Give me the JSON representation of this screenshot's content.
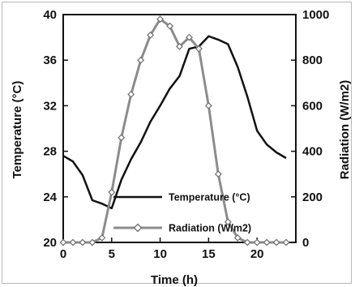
{
  "chart_data": {
    "type": "line",
    "xlabel": "Time (h)",
    "ylabel_left": "Temperature (°C)",
    "ylabel_right": "Radiation (W/m2)",
    "xlim": [
      0,
      24
    ],
    "ylim_left": [
      20,
      40
    ],
    "ylim_right": [
      0,
      1000
    ],
    "x_ticks": [
      0,
      5,
      10,
      15,
      20
    ],
    "y_ticks_left": [
      20,
      24,
      28,
      32,
      36,
      40
    ],
    "y_ticks_right": [
      0,
      200,
      400,
      600,
      800,
      1000
    ],
    "grid": false,
    "legend_position": "bottom-center",
    "series": [
      {
        "name": "Temperature (°C)",
        "axis": "left",
        "color": "#111111",
        "marker": "none",
        "x": [
          0,
          1,
          2,
          3,
          4,
          5,
          6,
          7,
          8,
          9,
          10,
          11,
          12,
          13,
          14,
          15,
          16,
          17,
          18,
          19,
          20,
          21,
          22,
          23
        ],
        "y": [
          27.6,
          27.1,
          25.9,
          23.7,
          23.4,
          23.0,
          25.5,
          27.3,
          28.8,
          30.6,
          32.0,
          33.5,
          34.6,
          37.0,
          37.2,
          38.1,
          37.8,
          37.4,
          35.4,
          32.8,
          29.8,
          28.6,
          27.9,
          27.4
        ]
      },
      {
        "name": "Radiation (W/m2)",
        "axis": "right",
        "color": "#8c8c8c",
        "marker": "diamond",
        "x": [
          0,
          1,
          2,
          3,
          4,
          5,
          6,
          7,
          8,
          9,
          10,
          11,
          12,
          13,
          14,
          15,
          16,
          17,
          18,
          19,
          20,
          21,
          22,
          23
        ],
        "y": [
          0,
          0,
          0,
          0,
          20,
          220,
          460,
          650,
          800,
          910,
          980,
          950,
          860,
          900,
          850,
          600,
          300,
          90,
          20,
          0,
          0,
          0,
          0,
          0
        ]
      }
    ]
  }
}
